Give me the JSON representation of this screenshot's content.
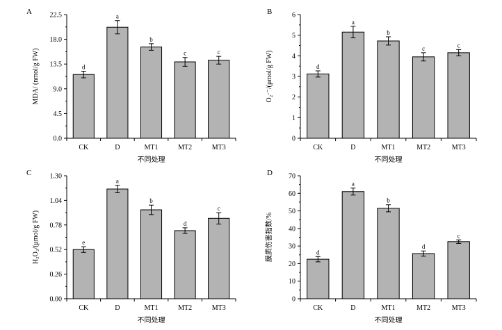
{
  "colors": {
    "bar_fill": "#b3b3b3",
    "bar_stroke": "#000000",
    "axis": "#000000"
  },
  "chart_data": [
    {
      "type": "bar",
      "panel": "A",
      "ylabel": "MDA/ (nmol/g FW)",
      "xlabel": "不同处理",
      "categories": [
        "CK",
        "D",
        "MT1",
        "MT2",
        "MT3"
      ],
      "values": [
        11.6,
        20.2,
        16.6,
        13.9,
        14.2
      ],
      "errors": [
        0.6,
        1.2,
        0.6,
        0.8,
        0.7
      ],
      "letters": [
        "d",
        "a",
        "b",
        "c",
        "c"
      ],
      "ylim": [
        0,
        22.5
      ],
      "yticks": [
        "0.0",
        "4.5",
        "9.0",
        "13.5",
        "18.0",
        "22.5"
      ]
    },
    {
      "type": "bar",
      "panel": "B",
      "ylabel": "O₂·⁻/(μmol/g FW)",
      "xlabel": "不同处理",
      "categories": [
        "CK",
        "D",
        "MT1",
        "MT2",
        "MT3"
      ],
      "values": [
        3.12,
        5.15,
        4.72,
        3.95,
        4.15
      ],
      "errors": [
        0.15,
        0.28,
        0.2,
        0.2,
        0.15
      ],
      "letters": [
        "d",
        "a",
        "b",
        "c",
        "c"
      ],
      "ylim": [
        0,
        6
      ],
      "yticks": [
        "0",
        "1",
        "2",
        "3",
        "4",
        "5",
        "6"
      ]
    },
    {
      "type": "bar",
      "panel": "C",
      "ylabel": "H₂O₂/(μmol/g FW)",
      "xlabel": "不同处理",
      "categories": [
        "CK",
        "D",
        "MT1",
        "MT2",
        "MT3"
      ],
      "values": [
        0.52,
        1.16,
        0.94,
        0.72,
        0.85
      ],
      "errors": [
        0.03,
        0.04,
        0.05,
        0.03,
        0.06
      ],
      "letters": [
        "e",
        "a",
        "b",
        "d",
        "c"
      ],
      "ylim": [
        0,
        1.3
      ],
      "yticks": [
        "0.00",
        "0.26",
        "0.52",
        "0.78",
        "1.04",
        "1.30"
      ]
    },
    {
      "type": "bar",
      "panel": "D",
      "ylabel": "膜质伤害指数/%",
      "xlabel": "不同处理",
      "categories": [
        "CK",
        "D",
        "MT1",
        "MT2",
        "MT3"
      ],
      "values": [
        22.5,
        61.0,
        51.5,
        25.7,
        32.5
      ],
      "errors": [
        1.5,
        2.0,
        2.0,
        1.5,
        1.0
      ],
      "letters": [
        "d",
        "a",
        "b",
        "d",
        "c"
      ],
      "ylim": [
        0,
        70
      ],
      "yticks": [
        "0",
        "10",
        "20",
        "30",
        "40",
        "50",
        "60",
        "70"
      ]
    }
  ]
}
